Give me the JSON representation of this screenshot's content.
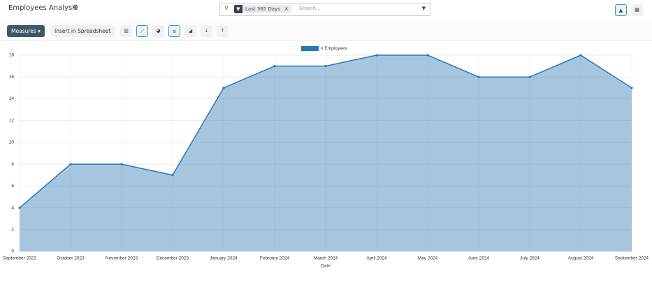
{
  "header": {
    "title": "Employees Analysis",
    "facet": "Last 365 Days",
    "search_placeholder": "Search..."
  },
  "toolbar": {
    "measures": "Measures",
    "insert": "Insert in Spreadsheet"
  },
  "chart_data": {
    "type": "area",
    "x_label": "Date",
    "categories": [
      "September 2023",
      "October 2023",
      "November 2023",
      "December 2023",
      "January 2024",
      "February 2024",
      "March 2024",
      "April 2024",
      "May 2024",
      "June 2024",
      "July 2024",
      "August 2024",
      "September 2024"
    ],
    "series": [
      {
        "name": "# Employees",
        "color": "#2a77b4",
        "values": [
          4,
          8,
          8,
          7,
          15,
          17,
          17,
          18,
          18,
          16,
          16,
          18,
          15
        ]
      }
    ],
    "ylim": [
      0,
      18
    ],
    "yticks": [
      0,
      2,
      4,
      6,
      8,
      10,
      12,
      14,
      16,
      18
    ],
    "grid": true,
    "legend": "top"
  }
}
